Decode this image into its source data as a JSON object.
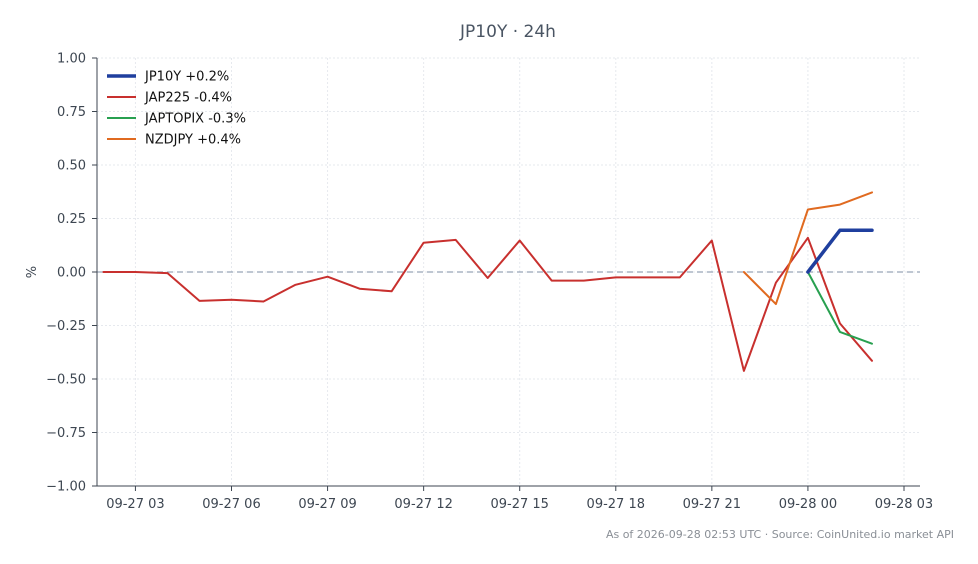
{
  "chart_data": {
    "type": "line",
    "title": "JP10Y · 24h",
    "xlabel": "",
    "ylabel": "%",
    "ylim": [
      -1.0,
      1.0
    ],
    "xlim": [
      "2026-09-27 01:48",
      "2026-09-28 03:30"
    ],
    "yticks": [
      1.0,
      0.75,
      0.5,
      0.25,
      0.0,
      -0.25,
      -0.5,
      -0.75,
      -1.0
    ],
    "ytick_labels": [
      "1.00",
      "0.75",
      "0.50",
      "0.25",
      "0.00",
      "−0.25",
      "−0.50",
      "−0.75",
      "−1.00"
    ],
    "xticks": [
      "2026-09-27 03:00",
      "2026-09-27 06:00",
      "2026-09-27 09:00",
      "2026-09-27 12:00",
      "2026-09-27 15:00",
      "2026-09-27 18:00",
      "2026-09-27 21:00",
      "2026-09-28 00:00",
      "2026-09-28 03:00"
    ],
    "xtick_labels": [
      "09-27 03",
      "09-27 06",
      "09-27 09",
      "09-27 12",
      "09-27 15",
      "09-27 18",
      "09-27 21",
      "09-28 00",
      "09-28 03"
    ],
    "grid": true,
    "baseline": 0.0,
    "legend_position": "top-left",
    "series": [
      {
        "name": "JP10Y +0.2%",
        "color": "#1f3f9e",
        "line_width": 3.5,
        "x": [
          "2026-09-28 00:00",
          "2026-09-28 01:00",
          "2026-09-28 02:00"
        ],
        "y": [
          0.0,
          0.195,
          0.195
        ]
      },
      {
        "name": "JAP225 -0.4%",
        "color": "#c8302e",
        "line_width": 2,
        "x": [
          "2026-09-27 02:00",
          "2026-09-27 03:00",
          "2026-09-27 04:00",
          "2026-09-27 05:00",
          "2026-09-27 06:00",
          "2026-09-27 07:00",
          "2026-09-27 08:00",
          "2026-09-27 09:00",
          "2026-09-27 10:00",
          "2026-09-27 11:00",
          "2026-09-27 12:00",
          "2026-09-27 13:00",
          "2026-09-27 14:00",
          "2026-09-27 15:00",
          "2026-09-27 16:00",
          "2026-09-27 17:00",
          "2026-09-27 18:00",
          "2026-09-27 19:00",
          "2026-09-27 20:00",
          "2026-09-27 21:00",
          "2026-09-27 22:00",
          "2026-09-27 23:00",
          "2026-09-28 00:00",
          "2026-09-28 01:00",
          "2026-09-28 02:00"
        ],
        "y": [
          0.0,
          0.0,
          -0.005,
          -0.135,
          -0.13,
          -0.138,
          -0.06,
          -0.022,
          -0.078,
          -0.09,
          0.137,
          0.15,
          -0.028,
          0.147,
          -0.04,
          -0.04,
          -0.025,
          -0.025,
          -0.025,
          0.147,
          -0.462,
          -0.05,
          0.16,
          -0.24,
          -0.415
        ]
      },
      {
        "name": "JAPTOPIX -0.3%",
        "color": "#28a050",
        "line_width": 2,
        "x": [
          "2026-09-28 00:00",
          "2026-09-28 01:00",
          "2026-09-28 02:00"
        ],
        "y": [
          0.0,
          -0.28,
          -0.335
        ]
      },
      {
        "name": "NZDJPY +0.4%",
        "color": "#e06a20",
        "line_width": 2,
        "x": [
          "2026-09-27 22:00",
          "2026-09-27 23:00",
          "2026-09-28 00:00",
          "2026-09-28 01:00",
          "2026-09-28 02:00"
        ],
        "y": [
          0.0,
          -0.15,
          0.292,
          0.315,
          0.372
        ]
      }
    ],
    "footer": "As of 2026-09-28 02:53 UTC · Source: CoinUnited.io market API"
  }
}
